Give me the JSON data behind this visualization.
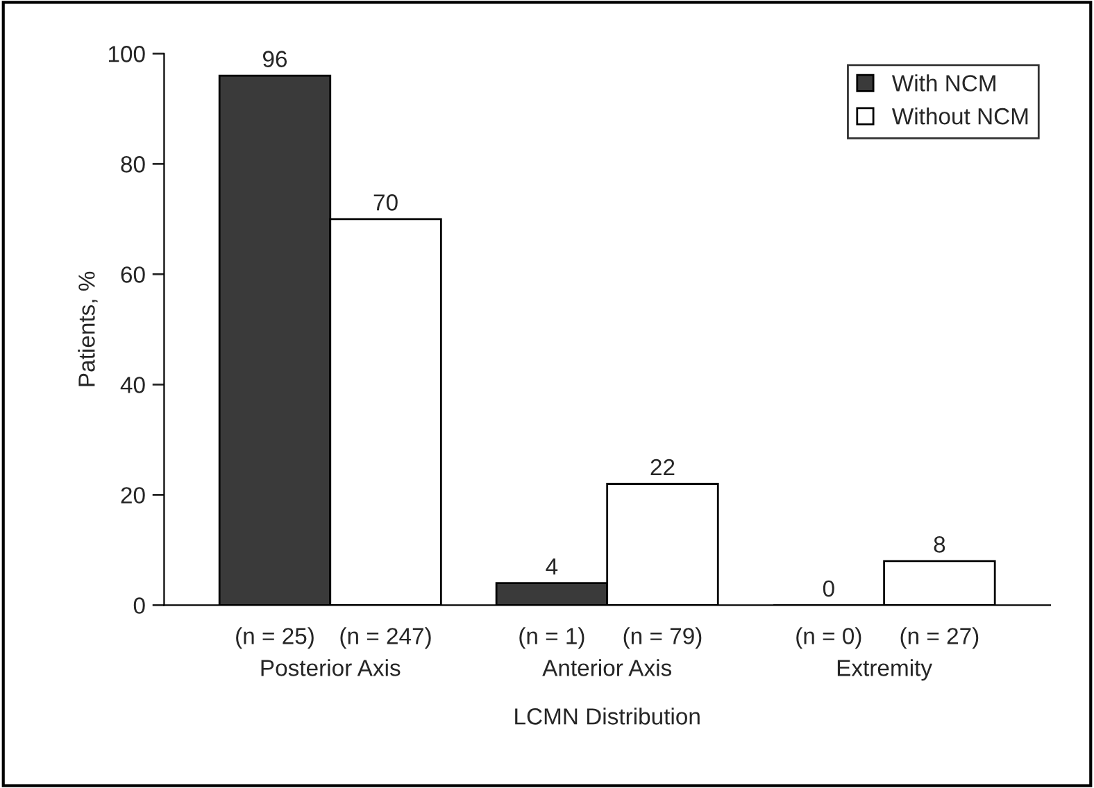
{
  "chart_data": {
    "type": "bar",
    "xlabel": "LCMN Distribution",
    "ylabel": "Patients, %",
    "categories": [
      "Posterior Axis",
      "Anterior Axis",
      "Extremity"
    ],
    "series": [
      {
        "name": "With NCM",
        "color": "#3a3a3a",
        "values": [
          96,
          4,
          0
        ]
      },
      {
        "name": "Without NCM",
        "color": "#ffffff",
        "values": [
          70,
          22,
          8
        ]
      }
    ],
    "ylim": [
      0,
      100
    ],
    "yticks": [
      0,
      20,
      40,
      60,
      80,
      100
    ],
    "data_labels": true,
    "legend": "top right",
    "grid": false,
    "annotations": [
      "(n = 25)",
      "(n = 247)",
      "(n = 1)",
      "(n = 79)",
      "(n = 0)",
      "(n = 27)"
    ]
  }
}
